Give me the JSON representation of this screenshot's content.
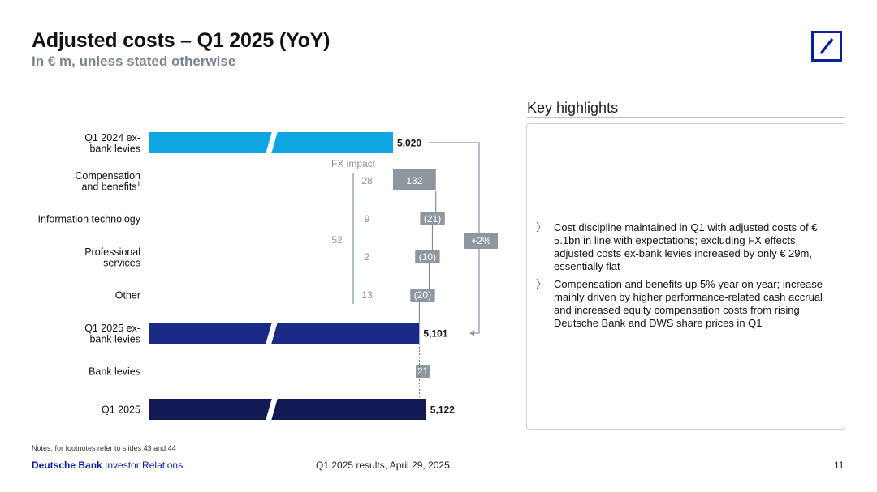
{
  "header": {
    "title": "Adjusted costs – Q1 2025 (YoY)",
    "subtitle": "In € m, unless stated otherwise"
  },
  "logo": {
    "icon": "deutsche-bank-slash-logo",
    "color": "#0b1f9a"
  },
  "chart_data": {
    "type": "waterfall",
    "title": "",
    "fx_impact_label": "FX impact",
    "fx_total": "52",
    "change_label": "+2%",
    "rows": [
      {
        "label": [
          "Q1 2024 ex-",
          "bank levies"
        ],
        "kind": "total",
        "value": 5020,
        "display": "5,020",
        "color": "#0ea5e0"
      },
      {
        "label": [
          "Compensation",
          "and benefits"
        ],
        "footnote": "1",
        "kind": "delta",
        "value": 132,
        "display": "132",
        "fx": "28"
      },
      {
        "label": [
          "Information technology"
        ],
        "kind": "delta",
        "value": -21,
        "display": "(21)",
        "fx": "9"
      },
      {
        "label": [
          "Professional",
          "services"
        ],
        "kind": "delta",
        "value": -10,
        "display": "(10)",
        "fx": "2"
      },
      {
        "label": [
          "Other"
        ],
        "kind": "delta",
        "value": -20,
        "display": "(20)",
        "fx": "13"
      },
      {
        "label": [
          "Q1 2025 ex-",
          "bank levies"
        ],
        "kind": "total",
        "value": 5101,
        "display": "5,101",
        "color": "#1b2a86"
      },
      {
        "label": [
          "Bank levies"
        ],
        "kind": "delta",
        "value": 21,
        "display": "21"
      },
      {
        "label": [
          "Q1 2025"
        ],
        "kind": "total",
        "value": 5122,
        "display": "5,122",
        "color": "#121a55"
      }
    ],
    "colors": {
      "delta": "#8e97a0"
    }
  },
  "highlights": {
    "title": "Key highlights",
    "items": [
      "Cost discipline maintained in Q1 with adjusted costs of € 5.1bn in line with expectations; excluding FX effects, adjusted costs ex-bank levies increased by only € 29m, essentially flat",
      "Compensation and benefits up 5% year on year; increase mainly driven by higher performance-related cash accrual and increased equity compensation costs from rising Deutsche Bank and DWS share prices in Q1"
    ]
  },
  "footer": {
    "notes": "Notes: for footnotes refer to slides 43 and 44",
    "brand_bold": "Deutsche Bank",
    "brand_rest": " Investor Relations",
    "center": "Q1 2025 results, April 29, 2025",
    "page": "11"
  }
}
